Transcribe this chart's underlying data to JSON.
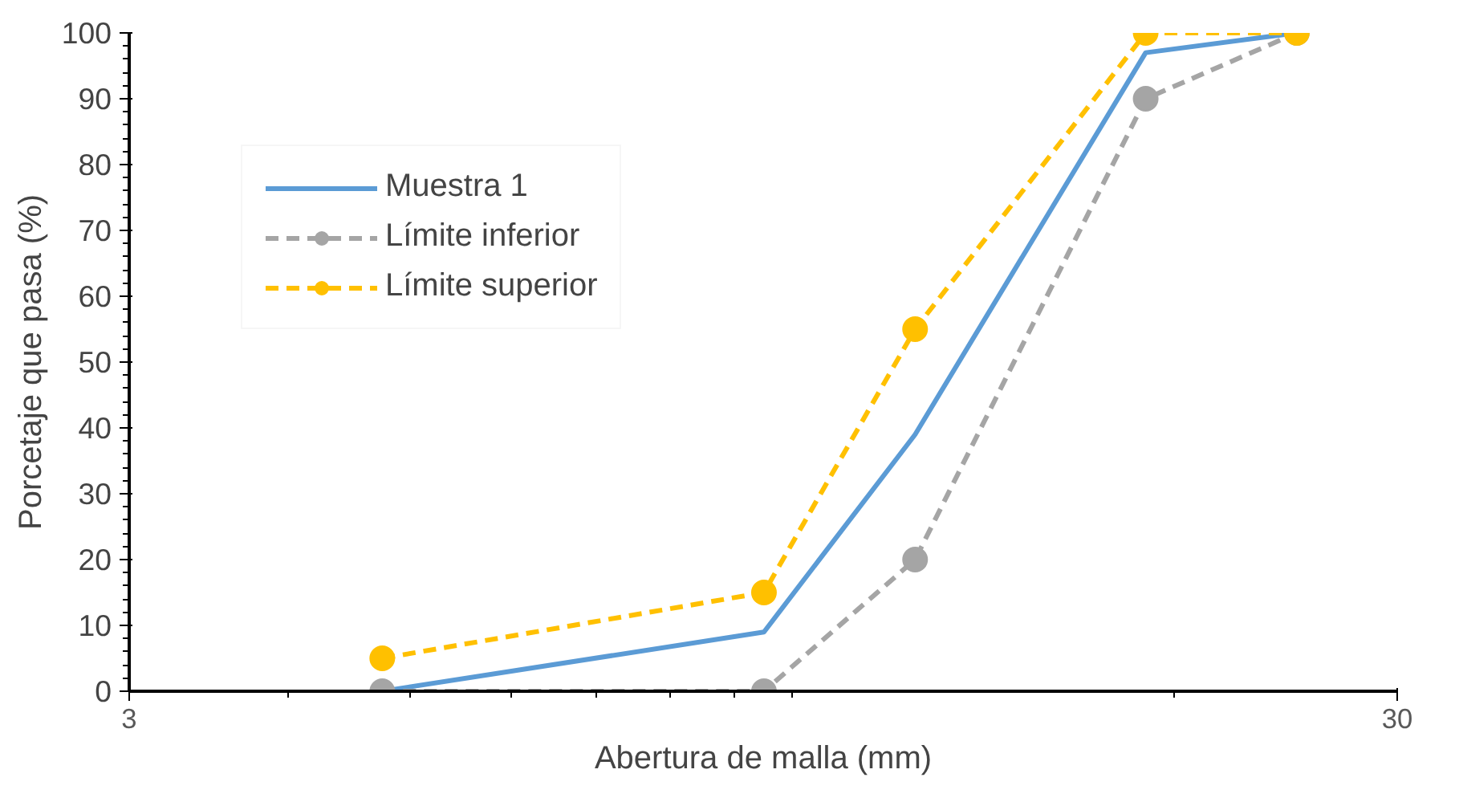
{
  "chart_data": {
    "type": "line",
    "xlabel": "Abertura de malla (mm)",
    "ylabel": "Porcetaje que pasa (%)",
    "log": "x",
    "x": [
      4.75,
      9.5,
      12.5,
      19,
      25
    ],
    "xlim": [
      3,
      30
    ],
    "xticks": [
      3,
      30
    ],
    "ylim": [
      0,
      100
    ],
    "yticks": [
      0,
      10,
      20,
      30,
      40,
      50,
      60,
      70,
      80,
      90,
      100
    ],
    "grid": false,
    "legend": "top left",
    "series": [
      {
        "name": "Muestra 1",
        "color": "#5b9bd5",
        "values": [
          0,
          9,
          39,
          97,
          100
        ],
        "marker": "none",
        "line_style": "solid"
      },
      {
        "name": "Límite inferior",
        "color": "#a5a5a5",
        "values": [
          0,
          0,
          20,
          90,
          100
        ],
        "marker": "circle",
        "line_style": "dashed"
      },
      {
        "name": "Límite superior",
        "color": "#ffc000",
        "values": [
          5,
          15,
          55,
          100,
          100
        ],
        "marker": "circle",
        "line_style": "dashed"
      }
    ]
  }
}
